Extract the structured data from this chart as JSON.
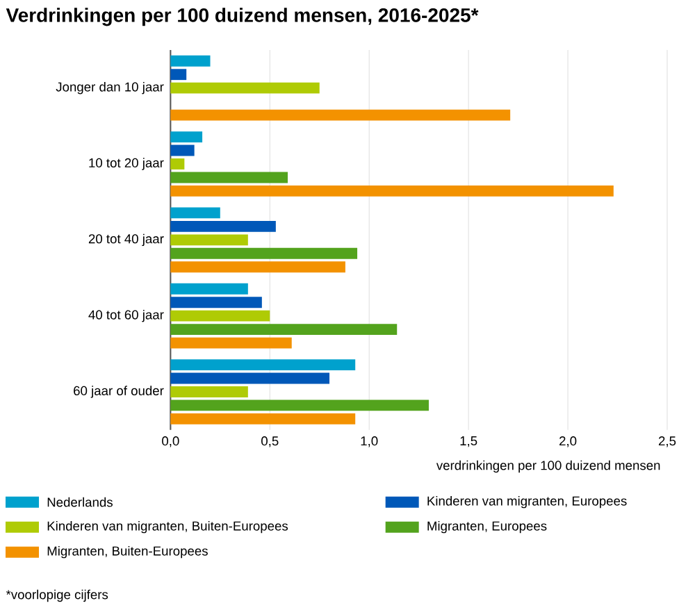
{
  "chart_data": {
    "type": "bar",
    "orientation": "horizontal",
    "title": "Verdrinkingen per 100 duizend mensen, 2016-2025*",
    "xlabel": "verdrinkingen per 100 duizend mensen",
    "categories": [
      "Jonger dan 10 jaar",
      "10 tot 20 jaar",
      "20 tot 40 jaar",
      "40 tot 60 jaar",
      "60 jaar of ouder"
    ],
    "series": [
      {
        "name": "Nederlands",
        "color": "#00a1cd",
        "values": [
          0.2,
          0.16,
          0.25,
          0.39,
          0.93
        ]
      },
      {
        "name": "Kinderen van migranten, Europees",
        "color": "#0058b8",
        "values": [
          0.08,
          0.12,
          0.53,
          0.46,
          0.8
        ]
      },
      {
        "name": "Kinderen van migranten, Buiten-Europees",
        "color": "#afcb05",
        "values": [
          0.75,
          0.07,
          0.39,
          0.5,
          0.39
        ]
      },
      {
        "name": "Migranten, Europees",
        "color": "#53a31d",
        "values": [
          null,
          0.59,
          0.94,
          1.14,
          1.3
        ]
      },
      {
        "name": "Migranten, Buiten-Europees",
        "color": "#f39200",
        "values": [
          1.71,
          2.23,
          0.88,
          0.61,
          0.93
        ]
      }
    ],
    "xlim": [
      0,
      2.5
    ],
    "xticks": [
      {
        "value": 0,
        "label": "0,0"
      },
      {
        "value": 0.5,
        "label": "0,5"
      },
      {
        "value": 1,
        "label": "1,0"
      },
      {
        "value": 1.5,
        "label": "1,5"
      },
      {
        "value": 2,
        "label": "2,0"
      },
      {
        "value": 2.5,
        "label": "2,5"
      }
    ],
    "grid": "x",
    "legend": "bottom",
    "annotations": [
      "*voorlopige cijfers"
    ]
  }
}
